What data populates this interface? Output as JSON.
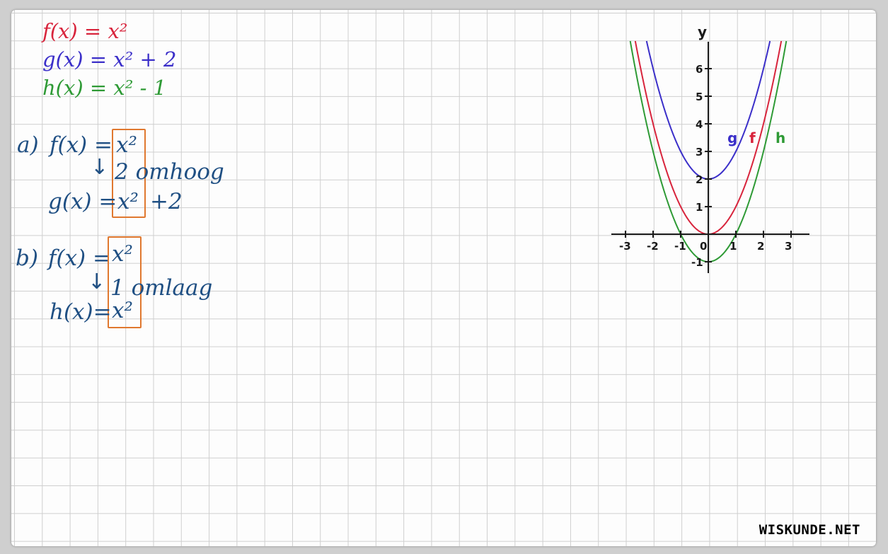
{
  "colors": {
    "f": "#d8243c",
    "g": "#3b2fc9",
    "h": "#2e9a35",
    "work": "#1f4f83",
    "box": "#e0782f",
    "axis": "#1a1a1a"
  },
  "definitions": [
    {
      "id": "f",
      "text": "f(x) = x²"
    },
    {
      "id": "g",
      "text": "g(x) = x² + 2"
    },
    {
      "id": "h",
      "text": "h(x) = x² - 1"
    }
  ],
  "part_a": {
    "label": "a)",
    "line1_lhs": "f(x) =",
    "line1_rhs": "x²",
    "arrow": "↓",
    "step": "2 omhoog",
    "line2_lhs": "g(x) =",
    "line2_rhs": "x²",
    "line2_tail": "+2"
  },
  "part_b": {
    "label": "b)",
    "line1_lhs": "f(x) =",
    "line1_rhs": "x²",
    "arrow": "↓",
    "step": "1 omlaag",
    "line2_lhs": "h(x)=",
    "line2_rhs": "x²"
  },
  "graph": {
    "y_axis_label": "y",
    "x_ticks": [
      "-3",
      "-2",
      "-1",
      "0",
      "1",
      "2",
      "3"
    ],
    "y_ticks": [
      "-1",
      "1",
      "2",
      "3",
      "4",
      "5",
      "6"
    ],
    "curve_labels": {
      "g": "g",
      "f": "f",
      "h": "h"
    },
    "x_range": [
      -3,
      3
    ],
    "y_range": [
      -1,
      7
    ],
    "curves": [
      {
        "id": "g",
        "a": 1,
        "c": 2,
        "color": "#3b2fc9"
      },
      {
        "id": "f",
        "a": 1,
        "c": 0,
        "color": "#d8243c"
      },
      {
        "id": "h",
        "a": 1,
        "c": -1,
        "color": "#2e9a35"
      }
    ]
  },
  "watermark": "WISKUNDE.NET"
}
